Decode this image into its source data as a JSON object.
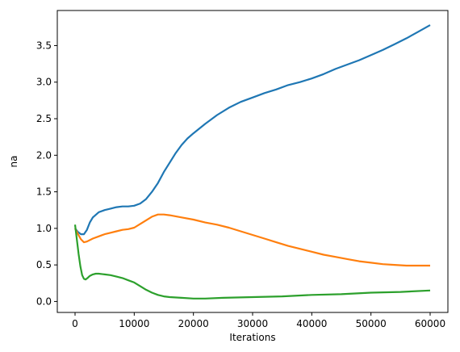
{
  "chart_data": {
    "type": "line",
    "title": "",
    "xlabel": "Iterations",
    "ylabel": "na",
    "xlim": [
      -3000,
      63000
    ],
    "ylim": [
      -0.15,
      3.98
    ],
    "xticks": [
      0,
      10000,
      20000,
      30000,
      40000,
      50000,
      60000
    ],
    "xtick_labels": [
      "0",
      "10000",
      "20000",
      "30000",
      "40000",
      "50000",
      "60000"
    ],
    "yticks": [
      0.0,
      0.5,
      1.0,
      1.5,
      2.0,
      2.5,
      3.0,
      3.5
    ],
    "ytick_labels": [
      "0.0",
      "0.5",
      "1.0",
      "1.5",
      "2.0",
      "2.5",
      "3.0",
      "3.5"
    ],
    "grid": false,
    "legend": "none",
    "series": [
      {
        "color": "#1f77b4",
        "x": [
          0,
          500,
          1000,
          1500,
          2000,
          2500,
          3000,
          4000,
          5000,
          6000,
          7000,
          8000,
          9000,
          10000,
          11000,
          12000,
          13000,
          14000,
          15000,
          16000,
          17000,
          18000,
          19000,
          20000,
          22000,
          24000,
          26000,
          28000,
          30000,
          32000,
          34000,
          36000,
          38000,
          40000,
          42000,
          44000,
          46000,
          48000,
          50000,
          52000,
          54000,
          56000,
          58000,
          60000
        ],
        "y": [
          1.0,
          0.95,
          0.92,
          0.92,
          0.98,
          1.08,
          1.15,
          1.22,
          1.25,
          1.27,
          1.29,
          1.3,
          1.3,
          1.31,
          1.34,
          1.4,
          1.5,
          1.62,
          1.77,
          1.9,
          2.03,
          2.14,
          2.23,
          2.3,
          2.43,
          2.55,
          2.65,
          2.73,
          2.79,
          2.85,
          2.9,
          2.96,
          3.0,
          3.05,
          3.11,
          3.18,
          3.24,
          3.3,
          3.37,
          3.44,
          3.52,
          3.6,
          3.69,
          3.78
        ]
      },
      {
        "color": "#ff7f0e",
        "x": [
          0,
          500,
          1000,
          1500,
          2000,
          3000,
          4000,
          5000,
          6000,
          7000,
          8000,
          9000,
          10000,
          11000,
          12000,
          13000,
          14000,
          15000,
          16000,
          18000,
          20000,
          22000,
          24000,
          26000,
          28000,
          30000,
          32000,
          34000,
          36000,
          38000,
          40000,
          42000,
          44000,
          46000,
          48000,
          50000,
          52000,
          54000,
          56000,
          58000,
          60000
        ],
        "y": [
          1.0,
          0.92,
          0.85,
          0.81,
          0.82,
          0.86,
          0.89,
          0.92,
          0.94,
          0.96,
          0.98,
          0.99,
          1.01,
          1.06,
          1.11,
          1.16,
          1.19,
          1.19,
          1.18,
          1.15,
          1.12,
          1.08,
          1.05,
          1.01,
          0.96,
          0.91,
          0.86,
          0.81,
          0.76,
          0.72,
          0.68,
          0.64,
          0.61,
          0.58,
          0.55,
          0.53,
          0.51,
          0.5,
          0.49,
          0.49,
          0.49
        ]
      },
      {
        "color": "#2ca02c",
        "x": [
          0,
          300,
          600,
          900,
          1200,
          1500,
          1800,
          2100,
          2500,
          3000,
          3500,
          4000,
          5000,
          6000,
          7000,
          8000,
          9000,
          10000,
          11000,
          12000,
          13000,
          14000,
          15000,
          16000,
          18000,
          20000,
          22000,
          25000,
          30000,
          35000,
          40000,
          45000,
          50000,
          55000,
          60000
        ],
        "y": [
          1.05,
          0.85,
          0.65,
          0.48,
          0.36,
          0.31,
          0.3,
          0.32,
          0.35,
          0.37,
          0.38,
          0.38,
          0.37,
          0.36,
          0.34,
          0.32,
          0.29,
          0.26,
          0.21,
          0.16,
          0.12,
          0.09,
          0.07,
          0.06,
          0.05,
          0.04,
          0.04,
          0.05,
          0.06,
          0.07,
          0.09,
          0.1,
          0.12,
          0.13,
          0.15
        ]
      }
    ]
  }
}
